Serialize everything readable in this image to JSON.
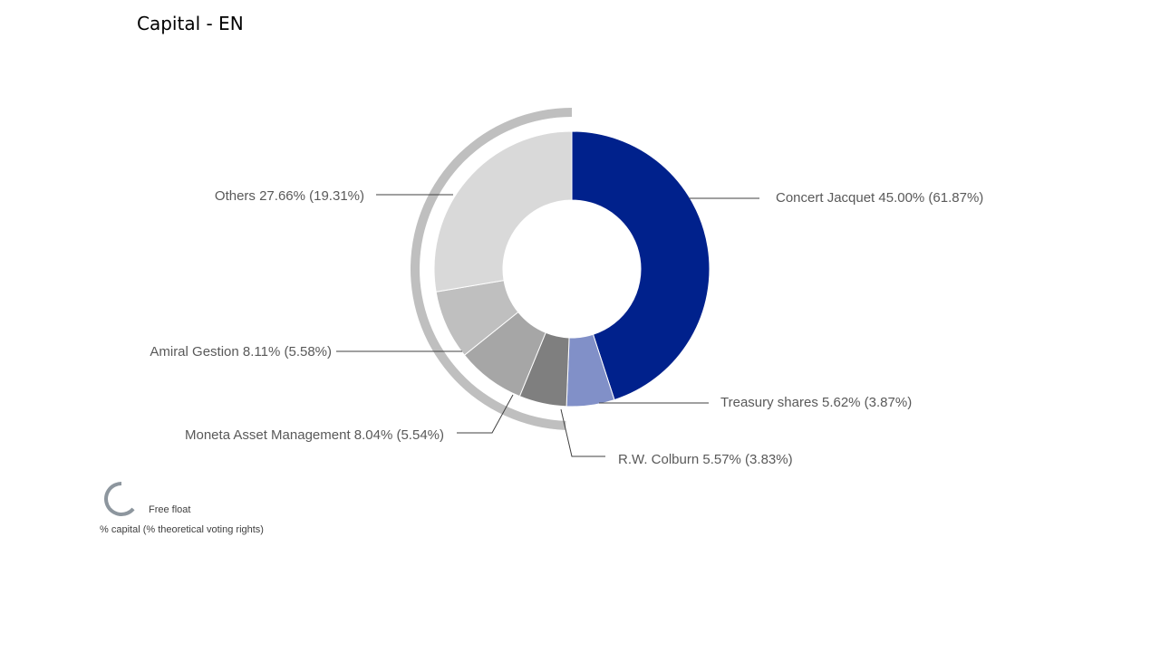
{
  "title": "Capital - EN",
  "chart_data": {
    "type": "pie",
    "style": "donut",
    "slices": [
      {
        "name": "Concert Jacquet",
        "capital": 45.0,
        "voting": 61.87,
        "label": "Concert Jacquet 45.00% (61.87%)",
        "color": "#00218c"
      },
      {
        "name": "Treasury shares",
        "capital": 5.62,
        "voting": 3.87,
        "label": "Treasury shares 5.62% (3.87%)",
        "color": "#8190c8"
      },
      {
        "name": "R.W. Colburn",
        "capital": 5.57,
        "voting": 3.83,
        "label": "R.W. Colburn 5.57% (3.83%)",
        "color": "#7f7f7f"
      },
      {
        "name": "Moneta Asset Management",
        "capital": 8.04,
        "voting": 5.54,
        "label": "Moneta Asset Management 8.04% (5.54%)",
        "color": "#a6a6a6"
      },
      {
        "name": "Amiral Gestion",
        "capital": 8.11,
        "voting": 5.58,
        "label": "Amiral Gestion 8.11% (5.58%)",
        "color": "#bfbfbf"
      },
      {
        "name": "Others",
        "capital": 27.66,
        "voting": 19.31,
        "label": "Others 27.66% (19.31%)",
        "color": "#d9d9d9"
      }
    ],
    "free_float": {
      "from_slice": "R.W. Colburn",
      "to_slice": "Others",
      "color": "#bfbfbf"
    },
    "legend": {
      "label": "Free float",
      "note": "% capital (% theoretical voting rights)",
      "icon_color": "#8d969e",
      "placement": "bottom-left"
    }
  }
}
